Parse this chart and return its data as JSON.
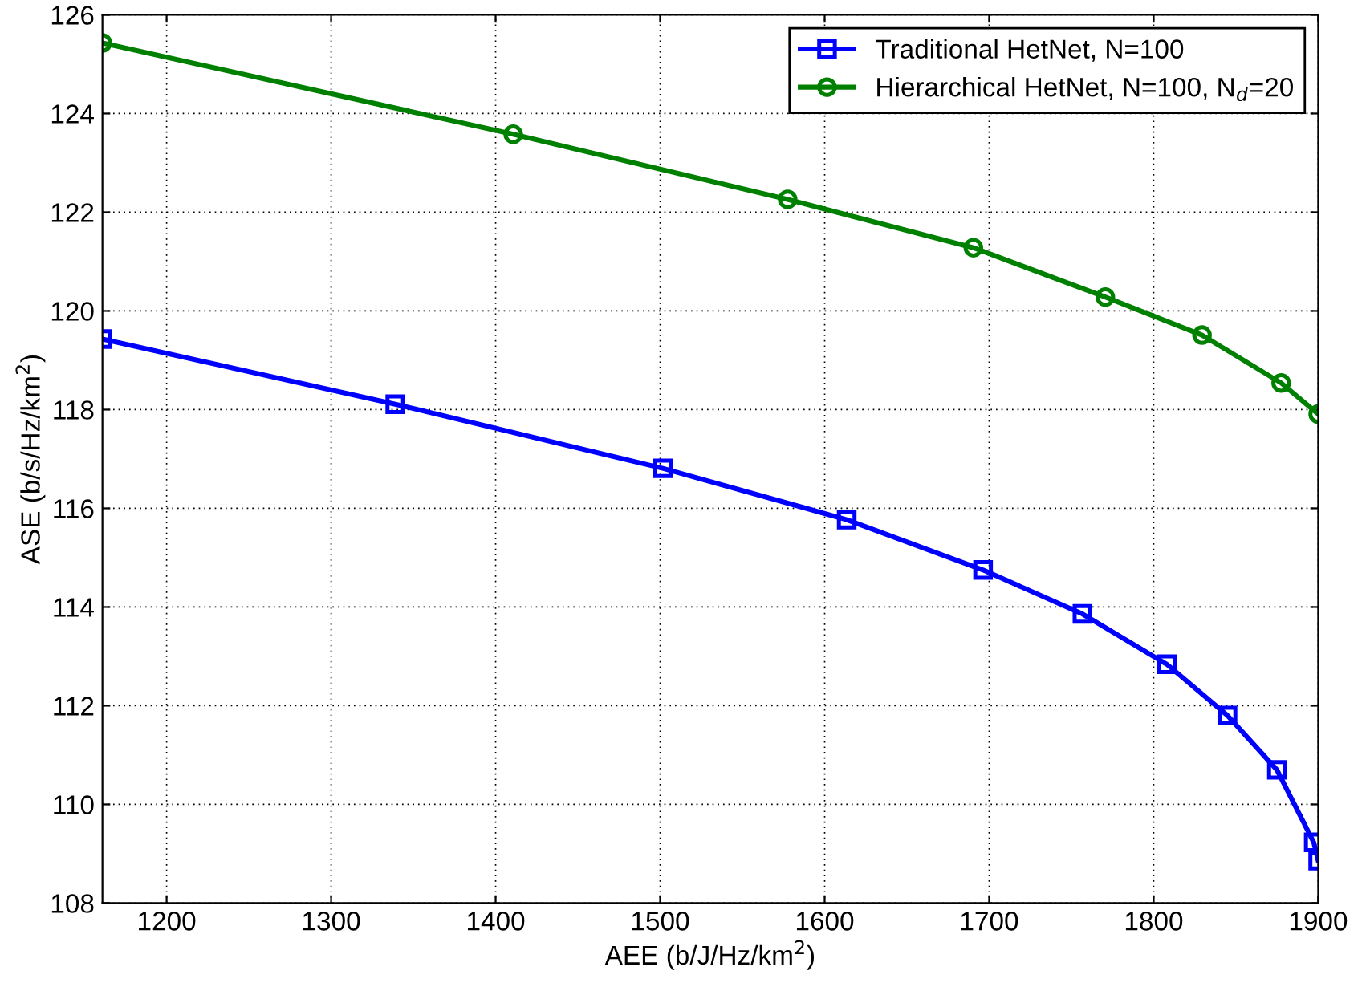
{
  "chart_data": {
    "type": "line",
    "xlabel": "AEE (b/J/Hz/km$^{2}$)",
    "ylabel": "ASE (b/s/Hz/km$^{2}$)",
    "xlim": [
      1161,
      1900
    ],
    "xticks": [
      1200,
      1300,
      1400,
      1500,
      1600,
      1700,
      1800,
      1900
    ],
    "ylim": [
      108,
      126
    ],
    "yticks": [
      108,
      110,
      112,
      114,
      116,
      118,
      120,
      122,
      124,
      126
    ],
    "grid": true,
    "legend": "top right",
    "line_style": "solid",
    "series": [
      {
        "name": "Traditional HetNet, N=100",
        "color": "#0000ff",
        "marker": "square",
        "x": [
          1161,
          1339,
          1501.6,
          1613.4,
          1696.3,
          1756.7,
          1808,
          1844.9,
          1874.9,
          1897.3,
          1900
        ],
        "values": [
          119.43,
          118.11,
          116.81,
          115.77,
          114.75,
          113.86,
          112.84,
          111.8,
          110.7,
          109.23,
          108.86
        ]
      },
      {
        "name": "Hierarchical HetNet, N=100, N$_{d}$=20",
        "color": "#008000",
        "marker": "circle",
        "x": [
          1161,
          1410.7,
          1577.5,
          1690.4,
          1770.6,
          1829.4,
          1877.5,
          1900
        ],
        "values": [
          125.43,
          123.58,
          122.26,
          121.28,
          120.28,
          119.51,
          118.54,
          117.91
        ]
      }
    ]
  }
}
